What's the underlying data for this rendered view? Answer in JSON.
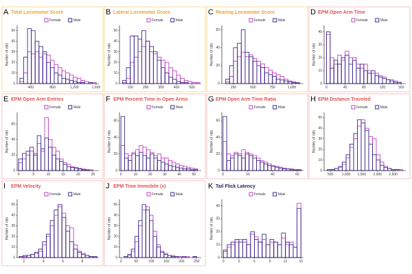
{
  "chart_data": [
    {
      "type": "histogram",
      "letter": "A",
      "title": "Total Locomotor Score",
      "title_color": "#f0a030",
      "border_color": "#f3d47a",
      "ylabel": "Number of rats",
      "xlim": [
        150,
        1650
      ],
      "xticks": [
        400,
        800,
        {
          "value": 1200,
          "label": "1,200"
        },
        {
          "value": 1600,
          "label": "1,600"
        }
      ],
      "ylim": [
        0,
        55
      ],
      "yticks": [
        0,
        10,
        20,
        30,
        40,
        50
      ],
      "bins": [
        200,
        270,
        340,
        410,
        480,
        550,
        620,
        690,
        760,
        830,
        900,
        970,
        1040,
        1110,
        1180,
        1250,
        1320,
        1390,
        1460,
        1530,
        1600
      ],
      "series": [
        {
          "name": "Female",
          "color": "#c040c0",
          "values": [
            2,
            10,
            30,
            28,
            30,
            25,
            28,
            27,
            22,
            18,
            15,
            12,
            10,
            8,
            6,
            5,
            3,
            2,
            1,
            1
          ]
        },
        {
          "name": "Male",
          "color": "#3a2a8a",
          "values": [
            5,
            25,
            52,
            50,
            40,
            35,
            30,
            20,
            15,
            10,
            8,
            5,
            4,
            3,
            2,
            1,
            1,
            0,
            1,
            0
          ]
        }
      ]
    },
    {
      "type": "histogram",
      "letter": "B",
      "title": "Lateral Locomotor Score",
      "title_color": "#f0a030",
      "border_color": "#f3d47a",
      "ylabel": "Number of rats",
      "xlim": [
        30,
        560
      ],
      "xticks": [
        100,
        200,
        300,
        400,
        500
      ],
      "ylim": [
        0,
        55
      ],
      "yticks": [
        0,
        10,
        20,
        30,
        40,
        50
      ],
      "bins": [
        50,
        75,
        100,
        125,
        150,
        175,
        200,
        225,
        250,
        275,
        300,
        325,
        350,
        375,
        400,
        425,
        450,
        475,
        500,
        525,
        550
      ],
      "series": [
        {
          "name": "Female",
          "color": "#c040c0",
          "values": [
            1,
            5,
            20,
            25,
            30,
            35,
            40,
            30,
            28,
            25,
            22,
            20,
            15,
            12,
            8,
            5,
            3,
            2,
            1,
            1
          ]
        },
        {
          "name": "Male",
          "color": "#3a2a8a",
          "values": [
            3,
            15,
            45,
            45,
            42,
            50,
            40,
            35,
            30,
            22,
            15,
            10,
            6,
            4,
            2,
            1,
            1,
            0,
            0,
            0
          ]
        }
      ]
    },
    {
      "type": "histogram",
      "letter": "C",
      "title": "Rearing Locomotor Score",
      "title_color": "#f0a030",
      "border_color": "#f3d47a",
      "ylabel": "Number of rats",
      "xlim": [
        100,
        1150
      ],
      "xticks": [
        250,
        500,
        750,
        {
          "value": 1000,
          "label": "1,000"
        }
      ],
      "ylim": [
        0,
        65
      ],
      "yticks": [
        0,
        20,
        40,
        60
      ],
      "bins": [
        150,
        200,
        250,
        300,
        350,
        400,
        450,
        500,
        550,
        600,
        650,
        700,
        750,
        800,
        850,
        900,
        950,
        1000,
        1050,
        1100
      ],
      "series": [
        {
          "name": "Female",
          "color": "#c040c0",
          "values": [
            2,
            8,
            25,
            30,
            35,
            30,
            32,
            28,
            25,
            22,
            18,
            15,
            12,
            10,
            8,
            5,
            3,
            2,
            1
          ]
        },
        {
          "name": "Male",
          "color": "#3a2a8a",
          "values": [
            5,
            20,
            40,
            45,
            60,
            35,
            30,
            25,
            20,
            18,
            12,
            10,
            8,
            5,
            4,
            3,
            2,
            1,
            1
          ]
        }
      ]
    },
    {
      "type": "histogram",
      "letter": "D",
      "title": "EPM Open Arm Time",
      "title_color": "#e05050",
      "border_color": "#f2b5b5",
      "ylabel": "Number of rats",
      "xlim": [
        -5,
        170
      ],
      "xticks": [
        0,
        40,
        80,
        120,
        160
      ],
      "ylim": [
        0,
        45
      ],
      "yticks": [
        0,
        10,
        20,
        30,
        40
      ],
      "bins": [
        0,
        8,
        16,
        24,
        32,
        40,
        48,
        56,
        64,
        72,
        80,
        88,
        96,
        104,
        112,
        120,
        128,
        136,
        144,
        152,
        160
      ],
      "series": [
        {
          "name": "Female",
          "color": "#c040c0",
          "values": [
            38,
            20,
            15,
            22,
            18,
            25,
            20,
            20,
            15,
            12,
            15,
            10,
            8,
            8,
            6,
            5,
            3,
            3,
            2,
            1
          ]
        },
        {
          "name": "Male",
          "color": "#3a2a8a",
          "values": [
            40,
            12,
            18,
            15,
            20,
            22,
            15,
            18,
            12,
            15,
            10,
            8,
            10,
            6,
            5,
            4,
            3,
            2,
            1,
            1
          ]
        }
      ]
    },
    {
      "type": "histogram",
      "letter": "E",
      "title": "EPM Open Arm Entries",
      "title_color": "#e05050",
      "border_color": "#f2b5b5",
      "ylabel": "Number of rats",
      "xlim": [
        -0.5,
        27
      ],
      "xticks": [
        0,
        5,
        10,
        15,
        20,
        25
      ],
      "ylim": [
        0,
        75
      ],
      "yticks": [
        0,
        20,
        40,
        60
      ],
      "bins": [
        0,
        1.25,
        2.5,
        3.75,
        5,
        6.25,
        7.5,
        8.75,
        10,
        11.25,
        12.5,
        13.75,
        15,
        16.25,
        17.5,
        18.75,
        20,
        21.25,
        22.5,
        23.75,
        25
      ],
      "series": [
        {
          "name": "Female",
          "color": "#c040c0",
          "values": [
            10,
            15,
            20,
            25,
            22,
            35,
            25,
            68,
            40,
            30,
            25,
            15,
            10,
            8,
            5,
            4,
            3,
            2,
            1,
            1
          ]
        },
        {
          "name": "Male",
          "color": "#3a2a8a",
          "values": [
            15,
            22,
            25,
            30,
            20,
            45,
            28,
            42,
            30,
            20,
            15,
            12,
            8,
            5,
            4,
            3,
            2,
            1,
            1,
            0
          ]
        }
      ]
    },
    {
      "type": "histogram",
      "letter": "F",
      "title": "EPM Percent Time in Open Arms",
      "title_color": "#e05050",
      "border_color": "#f2b5b5",
      "ylabel": "Number of rats",
      "xlim": [
        -1,
        55
      ],
      "xticks": [
        0,
        10,
        20,
        30,
        40,
        50
      ],
      "ylim": [
        0,
        70
      ],
      "yticks": [
        0,
        20,
        40,
        60
      ],
      "bins": [
        0,
        2.5,
        5,
        7.5,
        10,
        12.5,
        15,
        17.5,
        20,
        22.5,
        25,
        27.5,
        30,
        32.5,
        35,
        37.5,
        40,
        42.5,
        45,
        47.5,
        50,
        52.5
      ],
      "series": [
        {
          "name": "Female",
          "color": "#c040c0",
          "values": [
            30,
            20,
            18,
            22,
            25,
            30,
            28,
            25,
            22,
            18,
            20,
            15,
            15,
            12,
            10,
            8,
            6,
            5,
            4,
            3,
            2
          ]
        },
        {
          "name": "Male",
          "color": "#3a2a8a",
          "values": [
            65,
            15,
            12,
            20,
            18,
            22,
            18,
            15,
            20,
            15,
            12,
            10,
            8,
            6,
            5,
            4,
            3,
            2,
            2,
            1,
            1
          ]
        }
      ]
    },
    {
      "type": "histogram",
      "letter": "G",
      "title": "EPM Open Arm Time Ratio",
      "title_color": "#e05050",
      "border_color": "#f2b5b5",
      "ylabel": "Number of rats",
      "xlim": [
        -1,
        65
      ],
      "xticks": [
        0,
        20,
        40,
        60
      ],
      "ylim": [
        0,
        70
      ],
      "yticks": [
        0,
        20,
        40,
        60
      ],
      "bins": [
        0,
        3,
        6,
        9,
        12,
        15,
        18,
        21,
        24,
        27,
        30,
        33,
        36,
        39,
        42,
        45,
        48,
        51,
        54,
        57,
        60,
        63
      ],
      "series": [
        {
          "name": "Female",
          "color": "#c040c0",
          "values": [
            35,
            20,
            18,
            22,
            20,
            25,
            22,
            20,
            18,
            15,
            12,
            10,
            8,
            6,
            5,
            4,
            3,
            2,
            2,
            1,
            1
          ]
        },
        {
          "name": "Male",
          "color": "#3a2a8a",
          "values": [
            65,
            12,
            15,
            20,
            18,
            15,
            20,
            18,
            15,
            12,
            10,
            8,
            6,
            5,
            4,
            3,
            2,
            2,
            1,
            1,
            1
          ]
        }
      ]
    },
    {
      "type": "histogram",
      "letter": "H",
      "title": "EPM Distance Traveled",
      "title_color": "#e05050",
      "border_color": "#f2b5b5",
      "ylabel": "Number of rats",
      "xlim": [
        300,
        2900
      ],
      "xticks": [
        500,
        {
          "value": 1000,
          "label": "1,000"
        },
        {
          "value": 1500,
          "label": "1,500"
        },
        {
          "value": 2000,
          "label": "2,000"
        },
        {
          "value": 2500,
          "label": "2,500"
        }
      ],
      "ylim": [
        0,
        55
      ],
      "yticks": [
        0,
        10,
        20,
        30,
        40,
        50
      ],
      "bins": [
        400,
        520,
        640,
        760,
        880,
        1000,
        1120,
        1240,
        1360,
        1480,
        1600,
        1720,
        1840,
        1960,
        2080,
        2200,
        2320,
        2440,
        2560,
        2680,
        2800
      ],
      "series": [
        {
          "name": "Female",
          "color": "#c040c0",
          "values": [
            0,
            1,
            2,
            3,
            6,
            12,
            22,
            30,
            42,
            48,
            40,
            32,
            30,
            15,
            8,
            4,
            2,
            1,
            1,
            1
          ]
        },
        {
          "name": "Male",
          "color": "#3a2a8a",
          "values": [
            1,
            1,
            2,
            4,
            8,
            15,
            25,
            35,
            48,
            45,
            38,
            25,
            15,
            10,
            5,
            3,
            2,
            1,
            1,
            0
          ]
        }
      ]
    },
    {
      "type": "histogram",
      "letter": "I",
      "title": "EPM Velocity",
      "title_color": "#e05050",
      "border_color": "#f2b5b5",
      "ylabel": "Number of rats",
      "xlim": [
        1.3,
        9.7
      ],
      "xticks": [
        2,
        4,
        6,
        8
      ],
      "ylim": [
        0,
        55
      ],
      "yticks": [
        0,
        10,
        20,
        30,
        40,
        50
      ],
      "bins": [
        1.5,
        1.9,
        2.3,
        2.7,
        3.1,
        3.5,
        3.9,
        4.3,
        4.7,
        5.1,
        5.5,
        5.9,
        6.3,
        6.7,
        7.1,
        7.5,
        7.9,
        8.3,
        8.7,
        9.1,
        9.5
      ],
      "series": [
        {
          "name": "Female",
          "color": "#c040c0",
          "values": [
            1,
            1,
            2,
            3,
            4,
            6,
            12,
            20,
            30,
            40,
            48,
            42,
            30,
            28,
            12,
            6,
            4,
            2,
            1,
            1
          ]
        },
        {
          "name": "Male",
          "color": "#3a2a8a",
          "values": [
            1,
            2,
            2,
            3,
            5,
            8,
            15,
            22,
            35,
            45,
            50,
            38,
            25,
            15,
            8,
            5,
            3,
            2,
            1,
            1
          ]
        }
      ]
    },
    {
      "type": "histogram",
      "letter": "J",
      "title": "EPM Time Immobile (s)",
      "title_color": "#e05050",
      "border_color": "#f2b5b5",
      "ylabel": "Number of rats",
      "xlim": [
        -5,
        265
      ],
      "xticks": [
        0,
        50,
        100,
        150,
        200,
        250
      ],
      "ylim": [
        0,
        55
      ],
      "yticks": [
        0,
        10,
        20,
        30,
        40,
        50
      ],
      "bins": [
        10,
        22,
        34,
        46,
        58,
        70,
        82,
        94,
        106,
        118,
        130,
        142,
        154,
        166,
        178,
        190,
        202,
        214,
        226,
        238,
        250
      ],
      "series": [
        {
          "name": "Female",
          "color": "#c040c0",
          "values": [
            0,
            2,
            6,
            15,
            30,
            45,
            48,
            40,
            25,
            12,
            6,
            4,
            2,
            2,
            1,
            1,
            0,
            1,
            0,
            1
          ]
        },
        {
          "name": "Male",
          "color": "#3a2a8a",
          "values": [
            1,
            3,
            8,
            20,
            35,
            50,
            45,
            35,
            20,
            10,
            5,
            3,
            2,
            1,
            1,
            0,
            1,
            0,
            0,
            1
          ]
        }
      ]
    },
    {
      "type": "histogram",
      "letter": "K",
      "title": "Tail Flick Latency",
      "title_color": "#22285a",
      "ylabel": "Number of rats",
      "xlim": [
        -0.3,
        15.5
      ],
      "xticks": [
        0,
        3,
        6,
        9,
        12,
        15
      ],
      "ylim": [
        0,
        45
      ],
      "yticks": [
        0,
        10,
        20,
        30,
        40
      ],
      "bins": [
        0,
        0.75,
        1.5,
        2.25,
        3,
        3.75,
        4.5,
        5.25,
        6,
        6.75,
        7.5,
        8.25,
        9,
        9.75,
        10.5,
        11.25,
        12,
        12.75,
        13.5,
        14.25,
        15
      ],
      "series": [
        {
          "name": "Female",
          "color": "#c040c0",
          "values": [
            6,
            8,
            10,
            12,
            14,
            12,
            10,
            18,
            16,
            12,
            14,
            10,
            12,
            12,
            10,
            15,
            10,
            12,
            8,
            42
          ]
        },
        {
          "name": "Male",
          "color": "#3a2a8a",
          "values": [
            5,
            10,
            12,
            14,
            12,
            14,
            10,
            20,
            14,
            12,
            18,
            10,
            14,
            12,
            10,
            19,
            12,
            10,
            8,
            38
          ]
        }
      ]
    }
  ]
}
